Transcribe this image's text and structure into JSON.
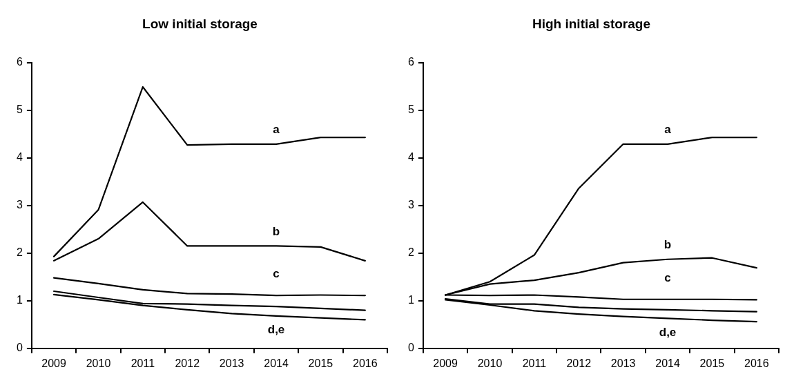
{
  "chart_data": [
    {
      "type": "line",
      "title": "Low initial storage",
      "categories": [
        "2009",
        "2010",
        "2011",
        "2012",
        "2013",
        "2014",
        "2015",
        "2016"
      ],
      "ylim": [
        0,
        6
      ],
      "yticks": [
        0,
        1,
        2,
        3,
        4,
        5,
        6
      ],
      "grid": false,
      "legend": false,
      "marker": "none",
      "line_style": "solid",
      "series": [
        {
          "name": "a",
          "color": "#000000",
          "values": [
            1.93,
            2.91,
            5.49,
            4.27,
            4.29,
            4.29,
            4.43,
            4.43
          ]
        },
        {
          "name": "b",
          "color": "#000000",
          "values": [
            1.84,
            2.3,
            3.07,
            2.15,
            2.15,
            2.15,
            2.13,
            1.84
          ]
        },
        {
          "name": "c",
          "color": "#000000",
          "values": [
            1.48,
            1.36,
            1.23,
            1.15,
            1.14,
            1.11,
            1.12,
            1.11
          ]
        },
        {
          "color": "#000000",
          "values": [
            1.2,
            1.07,
            0.94,
            0.93,
            0.9,
            0.88,
            0.84,
            0.8
          ]
        },
        {
          "color": "#000000",
          "values": [
            1.13,
            1.02,
            0.9,
            0.81,
            0.73,
            0.68,
            0.64,
            0.6
          ]
        }
      ],
      "annotations": [
        "d,e"
      ]
    },
    {
      "type": "line",
      "title": "High initial storage",
      "categories": [
        "2009",
        "2010",
        "2011",
        "2012",
        "2013",
        "2014",
        "2015",
        "2016"
      ],
      "ylim": [
        0,
        6
      ],
      "yticks": [
        0,
        1,
        2,
        3,
        4,
        5,
        6
      ],
      "grid": false,
      "legend": false,
      "marker": "none",
      "line_style": "solid",
      "series": [
        {
          "name": "a",
          "color": "#000000",
          "values": [
            1.12,
            1.4,
            1.96,
            3.36,
            4.29,
            4.29,
            4.43,
            4.43
          ]
        },
        {
          "name": "b",
          "color": "#000000",
          "values": [
            1.12,
            1.35,
            1.43,
            1.59,
            1.8,
            1.87,
            1.9,
            1.69
          ]
        },
        {
          "name": "c",
          "color": "#000000",
          "values": [
            1.12,
            1.11,
            1.12,
            1.08,
            1.03,
            1.03,
            1.03,
            1.02
          ]
        },
        {
          "color": "#000000",
          "values": [
            1.04,
            0.93,
            0.93,
            0.86,
            0.83,
            0.81,
            0.79,
            0.77
          ]
        },
        {
          "color": "#000000",
          "values": [
            1.02,
            0.91,
            0.79,
            0.72,
            0.67,
            0.63,
            0.59,
            0.56
          ]
        }
      ],
      "annotations": [
        "d,e"
      ]
    }
  ]
}
